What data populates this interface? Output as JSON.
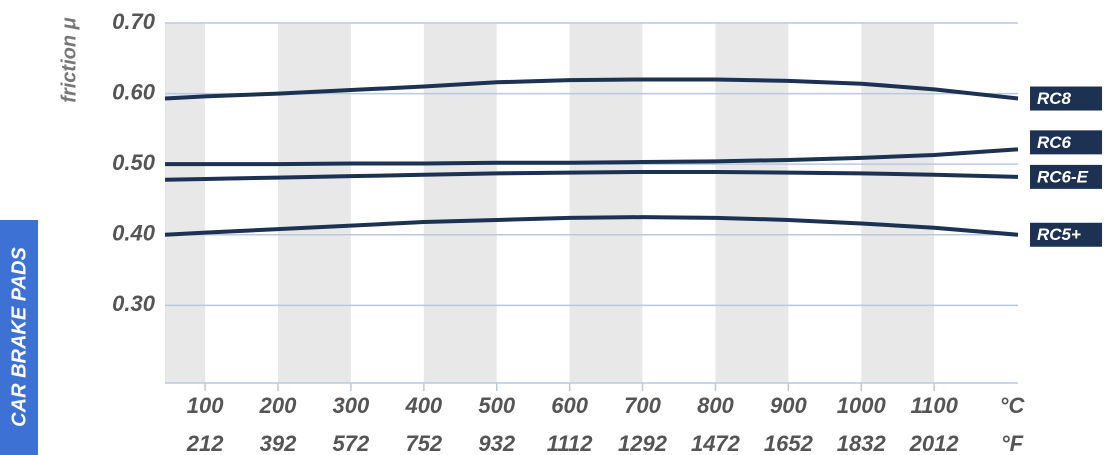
{
  "chart_data": {
    "type": "line",
    "y_axis_label": "friction μ",
    "side_label": "CAR BRAKE PADS",
    "x_unit": "°C",
    "x2_unit": "°F",
    "x": [
      45,
      100,
      200,
      300,
      400,
      500,
      600,
      700,
      800,
      900,
      1000,
      1100,
      1215
    ],
    "xlim": [
      45,
      1215
    ],
    "xticks": [
      100,
      200,
      300,
      400,
      500,
      600,
      700,
      800,
      900,
      1000,
      1100
    ],
    "x2_tick_labels": [
      "212",
      "392",
      "572",
      "752",
      "932",
      "1112",
      "1292",
      "1472",
      "1652",
      "1832",
      "2012"
    ],
    "ylim": [
      0.19,
      0.7
    ],
    "yticks": [
      {
        "value": 0.7,
        "label": "0.70"
      },
      {
        "value": 0.6,
        "label": "0.60"
      },
      {
        "value": 0.5,
        "label": "0.50"
      },
      {
        "value": 0.4,
        "label": "0.40"
      },
      {
        "value": 0.3,
        "label": "0.30"
      }
    ],
    "grid": true,
    "series": [
      {
        "name": "RC8",
        "color": "#1d3152",
        "values": [
          0.593,
          0.596,
          0.6,
          0.605,
          0.61,
          0.616,
          0.619,
          0.62,
          0.62,
          0.618,
          0.614,
          0.606,
          0.593
        ]
      },
      {
        "name": "RC6",
        "color": "#1d3152",
        "values": [
          0.5,
          0.5,
          0.5,
          0.501,
          0.501,
          0.502,
          0.502,
          0.503,
          0.504,
          0.506,
          0.509,
          0.513,
          0.521
        ]
      },
      {
        "name": "RC6-E",
        "color": "#1d3152",
        "values": [
          0.478,
          0.479,
          0.481,
          0.483,
          0.485,
          0.487,
          0.488,
          0.489,
          0.489,
          0.488,
          0.487,
          0.485,
          0.482
        ]
      },
      {
        "name": "RC5+",
        "color": "#1d3152",
        "values": [
          0.4,
          0.403,
          0.408,
          0.413,
          0.418,
          0.421,
          0.424,
          0.425,
          0.424,
          0.421,
          0.416,
          0.41,
          0.4
        ]
      }
    ]
  }
}
